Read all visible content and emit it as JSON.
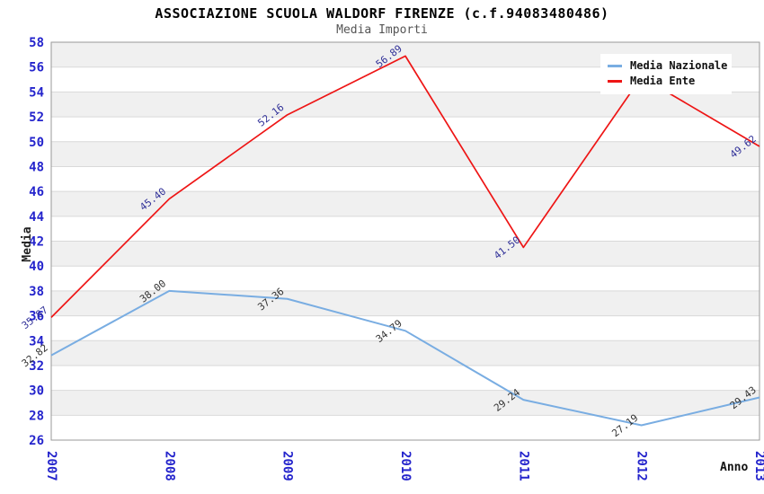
{
  "title": "ASSOCIAZIONE SCUOLA WALDORF FIRENZE (c.f.94083480486)",
  "subtitle": "Media Importi",
  "colors": {
    "tick_label": "#2424cc",
    "grid": "#d9d9d9",
    "band": "#f0f0f0",
    "border": "#999999",
    "nazionale_line": "#79ade2",
    "ente_line": "#ee1515",
    "nazionale_point_label": "#333333",
    "ente_point_label": "#323299"
  },
  "chart_data": {
    "type": "line",
    "x": [
      "2007",
      "2008",
      "2009",
      "2010",
      "2011",
      "2012",
      "2013"
    ],
    "xlabel": "Anno",
    "ylabel": "Media",
    "ylim": [
      26,
      58
    ],
    "ytick_step": 2,
    "grid": "horizontal-bands-alternating",
    "legend_position": "top-right",
    "series": [
      {
        "name": "Media Nazionale",
        "color": "#79ade2",
        "label_color": "#333333",
        "values": [
          32.82,
          38.0,
          37.36,
          34.79,
          29.24,
          27.19,
          29.43
        ],
        "point_labels": [
          "32.82",
          "38.00",
          "37.36",
          "34.79",
          "29.24",
          "27.19",
          "29.43"
        ]
      },
      {
        "name": "Media Ente",
        "color": "#ee1515",
        "label_color": "#323299",
        "values": [
          35.87,
          45.4,
          52.16,
          56.89,
          41.5,
          55.2,
          49.62
        ],
        "point_labels": [
          "35.87",
          "45.40",
          "52.16",
          "56.89",
          "41.50",
          "",
          "49.62"
        ]
      }
    ]
  }
}
